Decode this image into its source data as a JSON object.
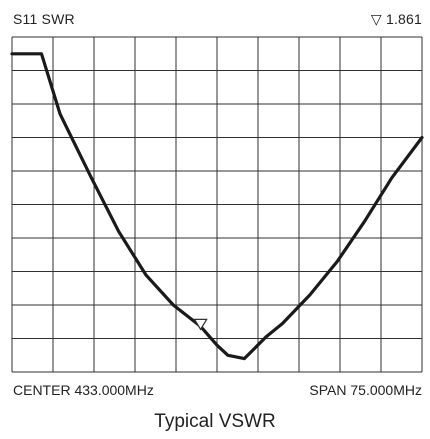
{
  "header": {
    "trace_label": "S11 SWR",
    "marker_readout": "▽ 1.861"
  },
  "footer": {
    "center_label": "CENTER 433.000MHz",
    "span_label": "SPAN 75.000MHz"
  },
  "caption": "Typical VSWR",
  "colors": {
    "trace": "#1a1a1a",
    "grid": "#303030",
    "background": "#ffffff"
  },
  "chart_data": {
    "type": "line",
    "title": "Typical VSWR",
    "trace": "S11 SWR",
    "center_mhz": 433.0,
    "span_mhz": 75.0,
    "xlim": [
      395.5,
      470.5
    ],
    "grid": true,
    "grid_divisions": {
      "x": 10,
      "y": 10
    },
    "series": [
      {
        "x": [
          395.5,
          400.9,
          404.3,
          410.0,
          415.0,
          420.0,
          425.0,
          430.0,
          433.0,
          435.0,
          438.0,
          442.0,
          445.0,
          450.0,
          455.0,
          460.0,
          465.0,
          470.5
        ],
        "y": [
          10.0,
          10.0,
          8.2,
          6.3,
          4.7,
          3.4,
          2.5,
          1.861,
          1.4,
          1.25,
          1.2,
          1.55,
          1.95,
          2.8,
          3.8,
          5.0,
          6.3,
          7.5
        ]
      }
    ],
    "marker": {
      "x": 430.0,
      "y": 1.861,
      "label": "1.861"
    }
  }
}
